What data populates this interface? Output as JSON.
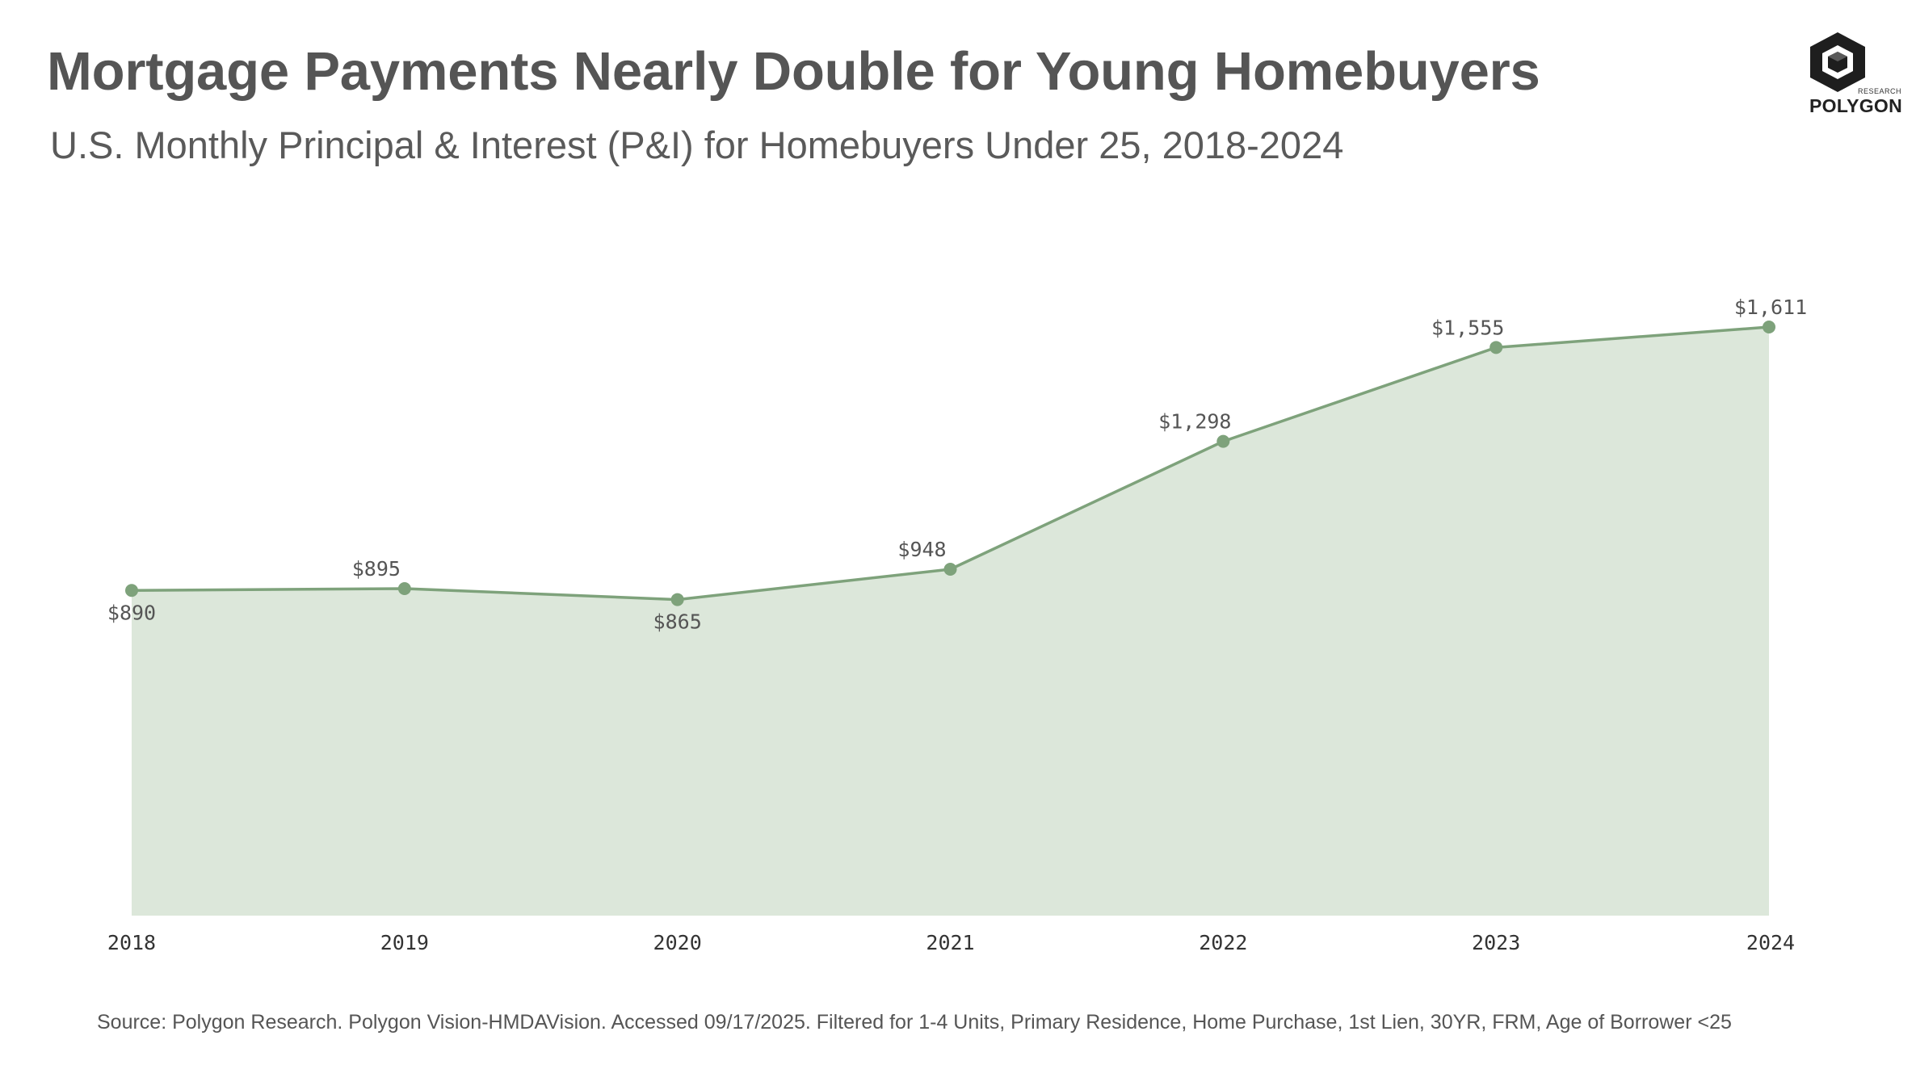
{
  "header": {
    "title": "Mortgage Payments Nearly Double for Young Homebuyers",
    "subtitle": "U.S. Monthly Principal & Interest (P&I) for Homebuyers Under 25, 2018-2024"
  },
  "logo": {
    "small_text": "RESEARCH",
    "name": "POLYGON"
  },
  "footer": {
    "source": "Source: Polygon Research. Polygon Vision-HMDAVision. Accessed 09/17/2025. Filtered for 1-4 Units, Primary Residence, Home Purchase, 1st Lien, 30YR, FRM, Age of Borrower <25"
  },
  "colors": {
    "line": "#7ea27b",
    "fill": "#dce7da",
    "text": "#555555"
  },
  "chart_data": {
    "type": "area",
    "title": "Mortgage Payments Nearly Double for Young Homebuyers",
    "subtitle": "U.S. Monthly Principal & Interest (P&I) for Homebuyers Under 25, 2018-2024",
    "xlabel": "",
    "ylabel": "",
    "categories": [
      "2018",
      "2019",
      "2020",
      "2021",
      "2022",
      "2023",
      "2024"
    ],
    "values": [
      890,
      895,
      865,
      948,
      1298,
      1555,
      1611
    ],
    "data_labels": [
      "$890",
      "$895",
      "$865",
      "$948",
      "$1,298",
      "$1,555",
      "$1,611"
    ],
    "ylim": [
      0,
      1611
    ],
    "grid": false,
    "legend": "none"
  }
}
